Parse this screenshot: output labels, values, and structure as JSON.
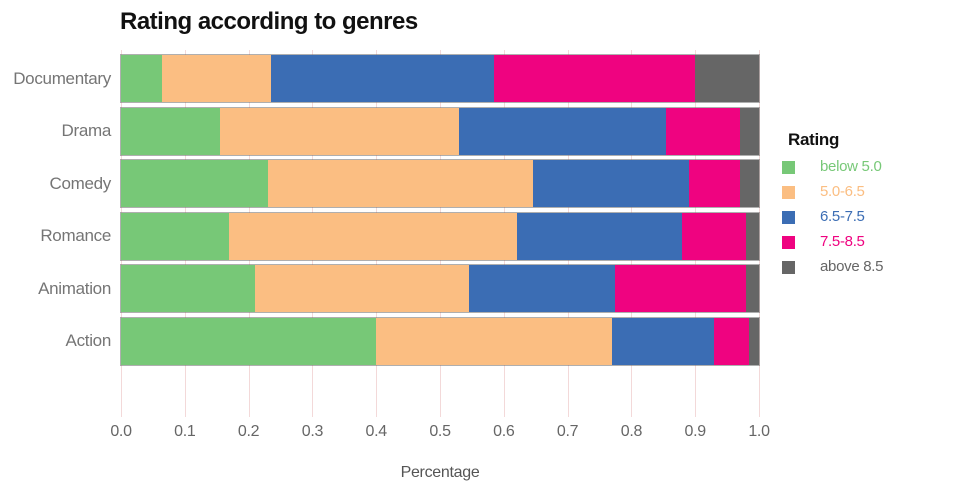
{
  "title": "Rating according to genres",
  "chart_data": {
    "type": "bar",
    "orientation": "horizontal",
    "stacked": true,
    "title": "Rating according to genres",
    "xlabel": "Percentage",
    "ylabel": "",
    "xlim": [
      0.0,
      1.0
    ],
    "x_ticks": [
      "0.0",
      "0.1",
      "0.2",
      "0.3",
      "0.4",
      "0.5",
      "0.6",
      "0.7",
      "0.8",
      "0.9",
      "1.0"
    ],
    "categories": [
      "Documentary",
      "Drama",
      "Comedy",
      "Romance",
      "Animation",
      "Action"
    ],
    "legend_title": "Rating",
    "legend_position": "right",
    "grid": true,
    "gridline_color": "#f3d9d9",
    "series": [
      {
        "name": "below 5.0",
        "color": "#77C877",
        "values": [
          0.065,
          0.155,
          0.23,
          0.17,
          0.21,
          0.4
        ]
      },
      {
        "name": "5.0-6.5",
        "color": "#FBBE82",
        "values": [
          0.17,
          0.375,
          0.415,
          0.45,
          0.335,
          0.37
        ]
      },
      {
        "name": "6.5-7.5",
        "color": "#3B6DB4",
        "values": [
          0.35,
          0.325,
          0.245,
          0.26,
          0.23,
          0.16
        ]
      },
      {
        "name": "7.5-8.5",
        "color": "#EF0380",
        "values": [
          0.315,
          0.115,
          0.08,
          0.1,
          0.205,
          0.055
        ]
      },
      {
        "name": "above 8.5",
        "color": "#666666",
        "values": [
          0.1,
          0.03,
          0.03,
          0.02,
          0.02,
          0.015
        ]
      }
    ]
  }
}
